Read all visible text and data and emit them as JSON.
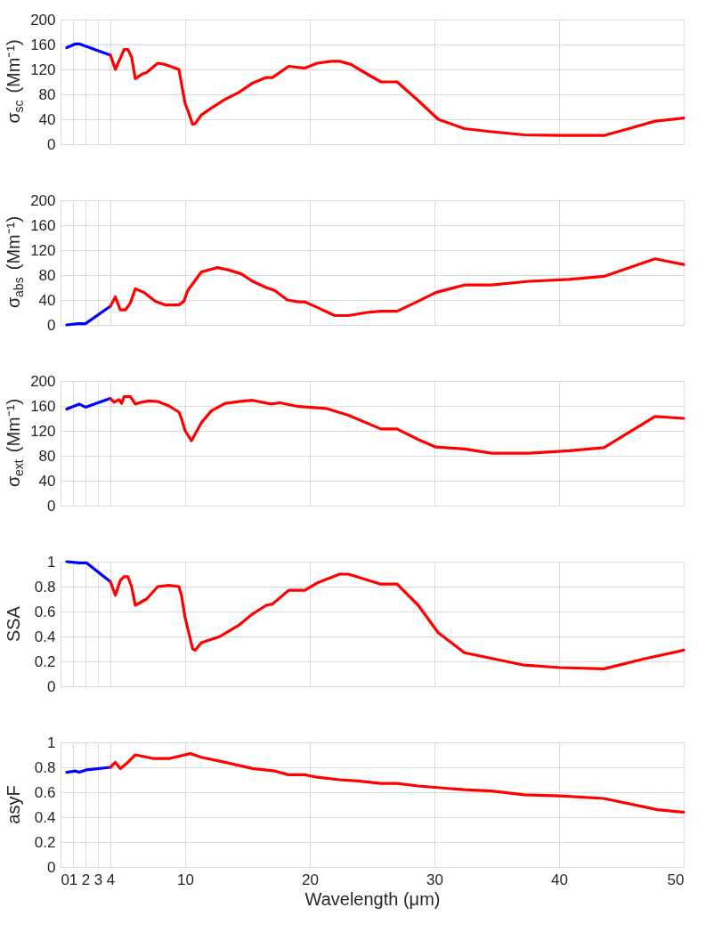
{
  "chart_data": [
    {
      "type": "line",
      "ylabel": "σ$_{sc}$ (Mm⁻¹)",
      "xlim": [
        0,
        50
      ],
      "xticks": [
        0,
        1,
        2,
        3,
        4,
        10,
        20,
        30,
        40,
        50
      ],
      "ylim": [
        0,
        200
      ],
      "yticks": [
        0,
        40,
        80,
        120,
        160,
        200
      ],
      "grid": true,
      "tick_labels": "y",
      "line_style": "solid",
      "series": [
        {
          "color": "#0000ff",
          "x": [
            0.5,
            1.2,
            1.5,
            4
          ],
          "values": [
            155,
            161,
            161,
            143
          ]
        },
        {
          "color": "#ff0000",
          "x": [
            4,
            4.4,
            5.1,
            5.4,
            5.7,
            6.0,
            6.5,
            6.9,
            7.8,
            8.4,
            9.5,
            9.7,
            10,
            10.2,
            10.6,
            10.8,
            11.3,
            12.1,
            13.2,
            14.3,
            15.4,
            16.5,
            17,
            18.3,
            19.6,
            20.6,
            21.7,
            22.4,
            23.3,
            24.4,
            25.7,
            27,
            28.7,
            30.3,
            32.4,
            34.6,
            37.2,
            40.1,
            43.6,
            45.6,
            47.7,
            50
          ],
          "values": [
            143,
            120,
            152,
            152,
            140,
            105,
            112,
            115,
            130,
            128,
            120,
            97,
            65,
            55,
            32,
            33,
            47,
            58,
            72,
            83,
            98,
            107,
            107,
            125,
            122,
            130,
            133,
            133,
            128,
            115,
            100,
            100,
            70,
            40,
            25,
            20,
            15,
            14,
            14,
            25,
            37,
            42
          ]
        }
      ]
    },
    {
      "type": "line",
      "ylabel": "σ$_{abs}$ (Mm⁻¹)",
      "xlim": [
        0,
        50
      ],
      "xticks": [
        0,
        1,
        2,
        3,
        4,
        10,
        20,
        30,
        40,
        50
      ],
      "ylim": [
        0,
        200
      ],
      "yticks": [
        0,
        40,
        80,
        120,
        160,
        200
      ],
      "grid": true,
      "tick_labels": "y",
      "line_style": "solid",
      "series": [
        {
          "color": "#0000ff",
          "x": [
            0.5,
            1.4,
            2,
            4
          ],
          "values": [
            0,
            2,
            2,
            30
          ]
        },
        {
          "color": "#ff0000",
          "x": [
            4,
            4.4,
            4.8,
            5.2,
            5.6,
            6,
            6.7,
            7.6,
            8.4,
            9.5,
            9.9,
            10.2,
            11.3,
            12.6,
            13.5,
            14.5,
            15.4,
            16.5,
            17.2,
            18.2,
            19.1,
            19.6,
            20.6,
            22,
            23.1,
            24.6,
            25.7,
            27,
            28.7,
            30.1,
            32.4,
            34.6,
            37.6,
            40.8,
            43.6,
            47.7,
            50
          ],
          "values": [
            30,
            45,
            24,
            24,
            35,
            58,
            52,
            38,
            32,
            32,
            38,
            55,
            85,
            92,
            88,
            82,
            70,
            60,
            55,
            40,
            37,
            37,
            28,
            15,
            15,
            20,
            22,
            22,
            38,
            52,
            64,
            64,
            70,
            73,
            78,
            106,
            97
          ]
        }
      ]
    },
    {
      "type": "line",
      "ylabel": "σ$_{ext}$ (Mm⁻¹)",
      "xlim": [
        0,
        50
      ],
      "xticks": [
        0,
        1,
        2,
        3,
        4,
        10,
        20,
        30,
        40,
        50
      ],
      "ylim": [
        0,
        200
      ],
      "yticks": [
        0,
        40,
        80,
        120,
        160,
        200
      ],
      "grid": true,
      "tick_labels": "y",
      "line_style": "solid",
      "series": [
        {
          "color": "#0000ff",
          "x": [
            0.5,
            1.5,
            2,
            4
          ],
          "values": [
            155,
            163,
            158,
            172
          ]
        },
        {
          "color": "#ff0000",
          "x": [
            4,
            4.3,
            4.7,
            4.9,
            5.1,
            5.6,
            6,
            6.5,
            7.1,
            7.8,
            8.7,
            9.5,
            9.7,
            10,
            10.5,
            11.3,
            12.1,
            13.2,
            14.3,
            15.4,
            16.9,
            17.6,
            19.1,
            21.3,
            23.1,
            25.7,
            27,
            28.7,
            30.1,
            32.4,
            34.6,
            37.6,
            40.8,
            43.6,
            47.7,
            50
          ],
          "values": [
            172,
            166,
            170,
            164,
            175,
            175,
            163,
            166,
            168,
            167,
            160,
            150,
            140,
            120,
            104,
            133,
            152,
            164,
            167,
            169,
            163,
            165,
            159,
            156,
            145,
            123,
            123,
            106,
            94,
            91,
            84,
            84,
            88,
            93,
            143,
            140
          ]
        }
      ]
    },
    {
      "type": "line",
      "ylabel": "SSA",
      "xlim": [
        0,
        50
      ],
      "xticks": [
        0,
        1,
        2,
        3,
        4,
        10,
        20,
        30,
        40,
        50
      ],
      "ylim": [
        0,
        1
      ],
      "yticks": [
        0,
        0.2,
        0.4,
        0.6,
        0.8,
        1
      ],
      "grid": true,
      "tick_labels": "y",
      "line_style": "solid",
      "series": [
        {
          "color": "#0000ff",
          "x": [
            0.5,
            1.5,
            2.1,
            4
          ],
          "values": [
            1.0,
            0.99,
            0.99,
            0.84
          ]
        },
        {
          "color": "#ff0000",
          "x": [
            4,
            4.4,
            4.8,
            5.1,
            5.4,
            5.7,
            6,
            6.9,
            7.8,
            8.7,
            9.5,
            9.7,
            10,
            10.6,
            10.8,
            11.3,
            12.8,
            14.3,
            15.4,
            16.5,
            17,
            18.3,
            19.6,
            20.6,
            22.4,
            23.1,
            25.7,
            27,
            28.7,
            30.3,
            32.4,
            37.2,
            40.1,
            43.6,
            46.8,
            50
          ],
          "values": [
            0.84,
            0.73,
            0.85,
            0.88,
            0.88,
            0.8,
            0.65,
            0.7,
            0.8,
            0.81,
            0.8,
            0.73,
            0.55,
            0.3,
            0.29,
            0.35,
            0.4,
            0.49,
            0.58,
            0.65,
            0.66,
            0.77,
            0.77,
            0.83,
            0.9,
            0.9,
            0.82,
            0.82,
            0.65,
            0.43,
            0.27,
            0.17,
            0.15,
            0.14,
            0.22,
            0.29
          ]
        }
      ]
    },
    {
      "type": "line",
      "ylabel": "asyF",
      "xlabel": "Wavelength (μm)",
      "xlim": [
        0,
        50
      ],
      "xticks": [
        0,
        1,
        2,
        3,
        4,
        10,
        20,
        30,
        40,
        50
      ],
      "ylim": [
        0,
        1
      ],
      "yticks": [
        0,
        0.2,
        0.4,
        0.6,
        0.8,
        1
      ],
      "grid": true,
      "line_style": "solid",
      "series": [
        {
          "color": "#0000ff",
          "x": [
            0.5,
            1.2,
            1.5,
            2.1,
            4
          ],
          "values": [
            0.76,
            0.77,
            0.76,
            0.78,
            0.8
          ]
        },
        {
          "color": "#ff0000",
          "x": [
            4,
            4.4,
            4.8,
            5.4,
            6,
            7.5,
            8.7,
            10.4,
            11.3,
            13.2,
            15.4,
            17.2,
            18.3,
            19.6,
            20.6,
            22.4,
            23.9,
            25.7,
            27,
            28.7,
            32.4,
            34.6,
            37.2,
            40.1,
            43.6,
            47.9,
            50
          ],
          "values": [
            0.8,
            0.84,
            0.79,
            0.84,
            0.9,
            0.87,
            0.87,
            0.91,
            0.88,
            0.84,
            0.79,
            0.77,
            0.74,
            0.74,
            0.72,
            0.7,
            0.69,
            0.67,
            0.67,
            0.65,
            0.62,
            0.61,
            0.58,
            0.57,
            0.55,
            0.46,
            0.44
          ]
        }
      ]
    }
  ]
}
